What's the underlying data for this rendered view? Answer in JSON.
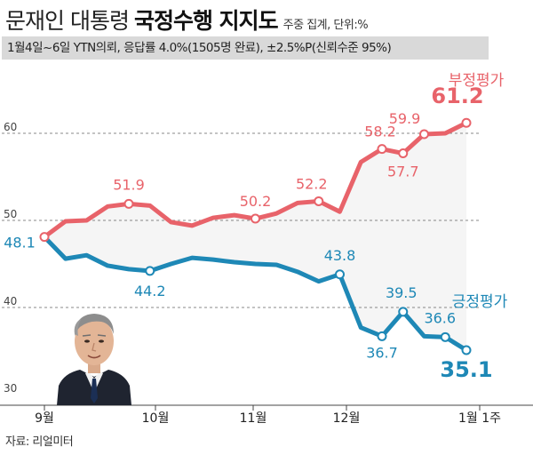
{
  "header": {
    "title_part1": "문재인 대통령",
    "title_part2": "국정수행 지지도",
    "title_note": "주중 집계, 단위:%",
    "subtitle": "1월4일~6일 YTN의뢰, 응답률 4.0%(1505명 완료), ±2.5%P(신뢰수준 95%)"
  },
  "source": "자료: 리얼미터",
  "colors": {
    "negative": "#e8636a",
    "positive": "#1e88b6",
    "fill": "#f5f5f5",
    "grid": "#888888"
  },
  "chart_data": {
    "type": "line",
    "x": [
      "9월",
      "",
      "",
      "",
      "",
      "10월",
      "",
      "",
      "",
      "",
      "11월",
      "",
      "",
      "",
      "",
      "12월",
      "",
      "",
      "",
      "",
      "1월 1주"
    ],
    "x_tick_labels": [
      "9월",
      "10월",
      "11월",
      "12월",
      "1월 1주"
    ],
    "ylim": [
      30,
      62
    ],
    "y_ticks": [
      30,
      40,
      50,
      60
    ],
    "series": [
      {
        "name": "부정평가",
        "values": [
          48.1,
          49.9,
          50.0,
          51.6,
          51.9,
          51.7,
          49.8,
          49.4,
          50.3,
          50.6,
          50.2,
          50.8,
          52.0,
          52.2,
          51.0,
          56.7,
          58.2,
          57.7,
          59.9,
          60.0,
          61.2
        ]
      },
      {
        "name": "긍정평가",
        "values": [
          48.1,
          45.6,
          46.0,
          44.8,
          44.4,
          44.2,
          45.0,
          45.7,
          45.5,
          45.2,
          45.0,
          44.9,
          44.1,
          43.0,
          43.8,
          37.7,
          36.7,
          39.5,
          36.7,
          36.6,
          35.1
        ]
      }
    ],
    "labels": [
      {
        "series": 0,
        "index": 0,
        "text": "48.1"
      },
      {
        "series": 0,
        "index": 4,
        "text": "51.9"
      },
      {
        "series": 0,
        "index": 10,
        "text": "50.2"
      },
      {
        "series": 0,
        "index": 13,
        "text": "52.2"
      },
      {
        "series": 0,
        "index": 16,
        "text": "58.2"
      },
      {
        "series": 0,
        "index": 17,
        "text": "57.7"
      },
      {
        "series": 0,
        "index": 18,
        "text": "59.9"
      },
      {
        "series": 0,
        "index": 20,
        "text": "61.2"
      },
      {
        "series": 1,
        "index": 5,
        "text": "44.2"
      },
      {
        "series": 1,
        "index": 14,
        "text": "43.8"
      },
      {
        "series": 1,
        "index": 16,
        "text": "36.7"
      },
      {
        "series": 1,
        "index": 17,
        "text": "39.5"
      },
      {
        "series": 1,
        "index": 19,
        "text": "36.6"
      },
      {
        "series": 1,
        "index": 20,
        "text": "35.1"
      }
    ]
  }
}
